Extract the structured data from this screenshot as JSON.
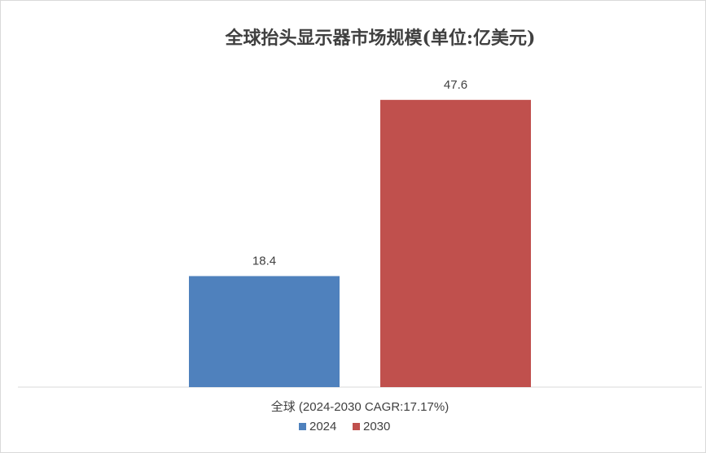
{
  "chart_data": {
    "type": "bar",
    "title": "全球抬头显示器市场规模(单位:亿美元)",
    "categories": [
      "全球 (2024-2030 CAGR:17.17%)"
    ],
    "series": [
      {
        "name": "2024",
        "color": "#4f81bd",
        "values": [
          18.4
        ]
      },
      {
        "name": "2030",
        "color": "#c0504d",
        "values": [
          47.6
        ]
      }
    ],
    "ylim": [
      0,
      50
    ],
    "legend": "bottom"
  }
}
